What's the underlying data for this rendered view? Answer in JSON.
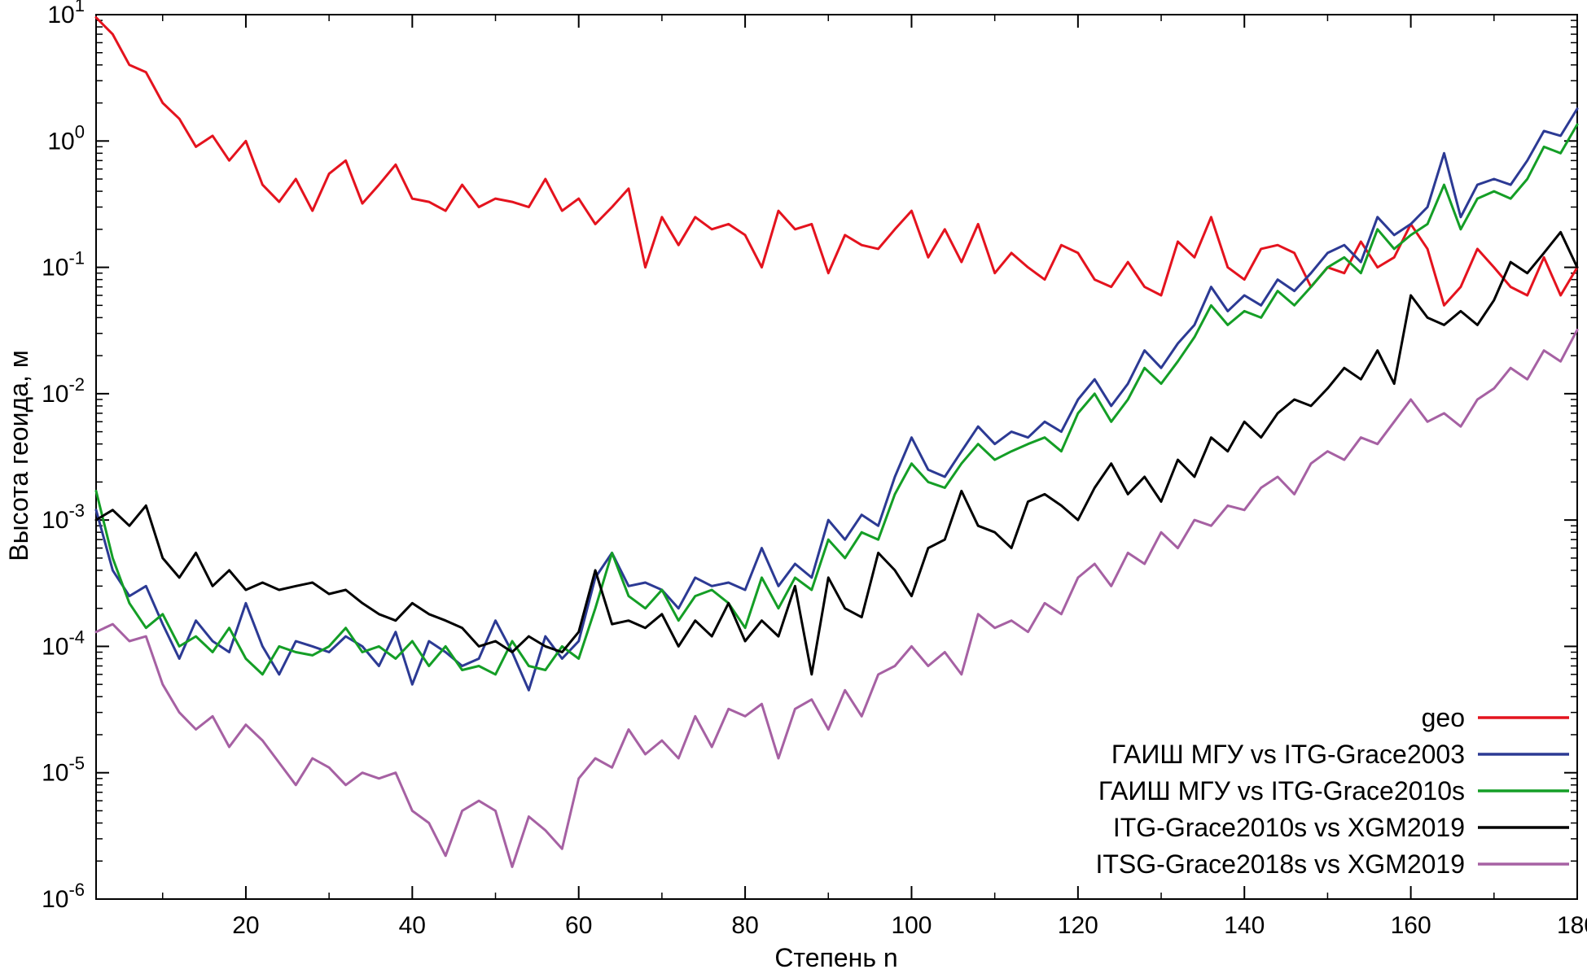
{
  "chart_data": {
    "type": "line",
    "title": "",
    "xlabel": "Степень n",
    "ylabel": "Высота геоида, м",
    "y_scale": "log",
    "y_range_exp": [
      -6,
      1
    ],
    "x_range": [
      2,
      180
    ],
    "x_ticks": [
      20,
      40,
      60,
      80,
      100,
      120,
      140,
      160,
      180
    ],
    "grid": false,
    "legend_position": "bottom-right",
    "x": [
      2,
      4,
      6,
      8,
      10,
      12,
      14,
      16,
      18,
      20,
      22,
      24,
      26,
      28,
      30,
      32,
      34,
      36,
      38,
      40,
      42,
      44,
      46,
      48,
      50,
      52,
      54,
      56,
      58,
      60,
      62,
      64,
      66,
      68,
      70,
      72,
      74,
      76,
      78,
      80,
      82,
      84,
      86,
      88,
      90,
      92,
      94,
      96,
      98,
      100,
      102,
      104,
      106,
      108,
      110,
      112,
      114,
      116,
      118,
      120,
      122,
      124,
      126,
      128,
      130,
      132,
      134,
      136,
      138,
      140,
      142,
      144,
      146,
      148,
      150,
      152,
      154,
      156,
      158,
      160,
      162,
      164,
      166,
      168,
      170,
      172,
      174,
      176,
      178,
      180
    ],
    "series": [
      {
        "name": "geo",
        "color": "#e4131e",
        "values": [
          9.5,
          7.0,
          4.0,
          3.5,
          2.0,
          1.5,
          0.9,
          1.1,
          0.7,
          1.0,
          0.45,
          0.33,
          0.5,
          0.28,
          0.55,
          0.7,
          0.32,
          0.45,
          0.65,
          0.35,
          0.33,
          0.28,
          0.45,
          0.3,
          0.35,
          0.33,
          0.3,
          0.5,
          0.28,
          0.35,
          0.22,
          0.3,
          0.42,
          0.1,
          0.25,
          0.15,
          0.25,
          0.2,
          0.22,
          0.18,
          0.1,
          0.28,
          0.2,
          0.22,
          0.09,
          0.18,
          0.15,
          0.14,
          0.2,
          0.28,
          0.12,
          0.2,
          0.11,
          0.22,
          0.09,
          0.13,
          0.1,
          0.08,
          0.15,
          0.13,
          0.08,
          0.07,
          0.11,
          0.07,
          0.06,
          0.16,
          0.12,
          0.25,
          0.1,
          0.08,
          0.14,
          0.15,
          0.13,
          0.07,
          0.1,
          0.09,
          0.16,
          0.1,
          0.12,
          0.22,
          0.14,
          0.05,
          0.07,
          0.14,
          0.1,
          0.07,
          0.06,
          0.12,
          0.06,
          0.1
        ]
      },
      {
        "name": "ГАИШ МГУ vs ITG-Grace2003",
        "color": "#2c3a94",
        "values": [
          0.0012,
          0.0004,
          0.00025,
          0.0003,
          0.00015,
          8e-05,
          0.00016,
          0.00011,
          9e-05,
          0.00022,
          0.0001,
          6e-05,
          0.00011,
          0.0001,
          9e-05,
          0.00012,
          0.0001,
          7e-05,
          0.00013,
          5e-05,
          0.00011,
          9e-05,
          7e-05,
          8e-05,
          0.00016,
          9e-05,
          4.5e-05,
          0.00012,
          8e-05,
          0.00011,
          0.00035,
          0.00055,
          0.0003,
          0.00032,
          0.00028,
          0.0002,
          0.00035,
          0.0003,
          0.00032,
          0.00028,
          0.0006,
          0.0003,
          0.00045,
          0.00035,
          0.001,
          0.0007,
          0.0011,
          0.0009,
          0.0022,
          0.0045,
          0.0025,
          0.0022,
          0.0035,
          0.0055,
          0.004,
          0.005,
          0.0045,
          0.006,
          0.005,
          0.009,
          0.013,
          0.008,
          0.012,
          0.022,
          0.016,
          0.025,
          0.035,
          0.07,
          0.045,
          0.06,
          0.05,
          0.08,
          0.065,
          0.09,
          0.13,
          0.15,
          0.11,
          0.25,
          0.18,
          0.22,
          0.3,
          0.8,
          0.25,
          0.45,
          0.5,
          0.45,
          0.7,
          1.2,
          1.1,
          1.8
        ]
      },
      {
        "name": "ГАИШ МГУ vs ITG-Grace2010s",
        "color": "#149e26",
        "values": [
          0.0017,
          0.0005,
          0.00022,
          0.00014,
          0.00018,
          0.0001,
          0.00012,
          9e-05,
          0.00014,
          8e-05,
          6e-05,
          0.0001,
          9e-05,
          8.5e-05,
          0.0001,
          0.00014,
          9e-05,
          0.0001,
          8e-05,
          0.00011,
          7e-05,
          0.0001,
          6.5e-05,
          7e-05,
          6e-05,
          0.00011,
          7e-05,
          6.5e-05,
          0.0001,
          8e-05,
          0.0002,
          0.00055,
          0.00025,
          0.0002,
          0.00028,
          0.00016,
          0.00025,
          0.00028,
          0.00022,
          0.00014,
          0.00035,
          0.0002,
          0.00035,
          0.00028,
          0.0007,
          0.0005,
          0.0008,
          0.0007,
          0.0016,
          0.0028,
          0.002,
          0.0018,
          0.0028,
          0.004,
          0.003,
          0.0035,
          0.004,
          0.0045,
          0.0035,
          0.007,
          0.01,
          0.006,
          0.009,
          0.016,
          0.012,
          0.018,
          0.028,
          0.05,
          0.035,
          0.045,
          0.04,
          0.065,
          0.05,
          0.07,
          0.1,
          0.12,
          0.09,
          0.2,
          0.14,
          0.18,
          0.22,
          0.45,
          0.2,
          0.35,
          0.4,
          0.35,
          0.5,
          0.9,
          0.8,
          1.35
        ]
      },
      {
        "name": "ITG-Grace2010s vs XGM2019",
        "color": "#000000",
        "values": [
          0.001,
          0.0012,
          0.0009,
          0.0013,
          0.0005,
          0.00035,
          0.00055,
          0.0003,
          0.0004,
          0.00028,
          0.00032,
          0.00028,
          0.0003,
          0.00032,
          0.00026,
          0.00028,
          0.00022,
          0.00018,
          0.00016,
          0.00022,
          0.00018,
          0.00016,
          0.00014,
          0.0001,
          0.00011,
          9e-05,
          0.00012,
          0.0001,
          9e-05,
          0.00013,
          0.0004,
          0.00015,
          0.00016,
          0.00014,
          0.00018,
          0.0001,
          0.00016,
          0.00012,
          0.00022,
          0.00011,
          0.00016,
          0.00012,
          0.0003,
          6e-05,
          0.00035,
          0.0002,
          0.00017,
          0.00055,
          0.0004,
          0.00025,
          0.0006,
          0.0007,
          0.0017,
          0.0009,
          0.0008,
          0.0006,
          0.0014,
          0.0016,
          0.0013,
          0.001,
          0.0018,
          0.0028,
          0.0016,
          0.0022,
          0.0014,
          0.003,
          0.0022,
          0.0045,
          0.0035,
          0.006,
          0.0045,
          0.007,
          0.009,
          0.008,
          0.011,
          0.016,
          0.013,
          0.022,
          0.012,
          0.06,
          0.04,
          0.035,
          0.045,
          0.035,
          0.055,
          0.11,
          0.09,
          0.13,
          0.19,
          0.1
        ]
      },
      {
        "name": "ITSG-Grace2018s vs XGM2019",
        "color": "#a661a3",
        "values": [
          0.00013,
          0.00015,
          0.00011,
          0.00012,
          5e-05,
          3e-05,
          2.2e-05,
          2.8e-05,
          1.6e-05,
          2.4e-05,
          1.8e-05,
          1.2e-05,
          8e-06,
          1.3e-05,
          1.1e-05,
          8e-06,
          1e-05,
          9e-06,
          1e-05,
          5e-06,
          4e-06,
          2.2e-06,
          5e-06,
          6e-06,
          5e-06,
          1.8e-06,
          4.5e-06,
          3.5e-06,
          2.5e-06,
          9e-06,
          1.3e-05,
          1.1e-05,
          2.2e-05,
          1.4e-05,
          1.8e-05,
          1.3e-05,
          2.8e-05,
          1.6e-05,
          3.2e-05,
          2.8e-05,
          3.5e-05,
          1.3e-05,
          3.2e-05,
          3.8e-05,
          2.2e-05,
          4.5e-05,
          2.8e-05,
          6e-05,
          7e-05,
          0.0001,
          7e-05,
          9e-05,
          6e-05,
          0.00018,
          0.00014,
          0.00016,
          0.00013,
          0.00022,
          0.00018,
          0.00035,
          0.00045,
          0.0003,
          0.00055,
          0.00045,
          0.0008,
          0.0006,
          0.001,
          0.0009,
          0.0013,
          0.0012,
          0.0018,
          0.0022,
          0.0016,
          0.0028,
          0.0035,
          0.003,
          0.0045,
          0.004,
          0.006,
          0.009,
          0.006,
          0.007,
          0.0055,
          0.009,
          0.011,
          0.016,
          0.013,
          0.022,
          0.018,
          0.032
        ]
      }
    ]
  }
}
